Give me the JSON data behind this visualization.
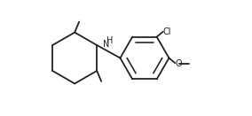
{
  "background_color": "#ffffff",
  "line_color": "#222222",
  "line_width": 1.3,
  "font_size": 7.0,
  "figsize": [
    2.84,
    1.31
  ],
  "dpi": 100,
  "xlim": [
    -0.3,
    9.8
  ],
  "ylim": [
    -0.5,
    6.0
  ]
}
